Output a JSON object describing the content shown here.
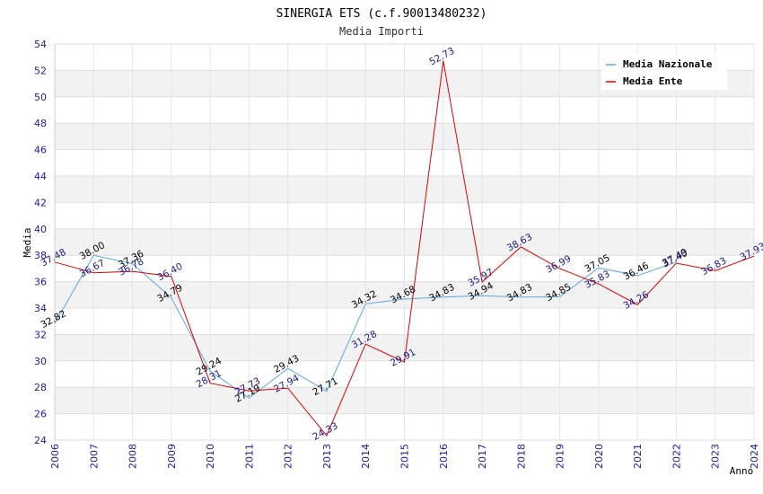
{
  "chart_data": {
    "type": "line",
    "title": "SINERGIA ETS (c.f.90013480232)",
    "subtitle": "Media Importi",
    "xlabel": "Anno",
    "ylabel": "Media",
    "ylim": [
      24,
      54
    ],
    "y_ticks": [
      24,
      26,
      28,
      30,
      32,
      34,
      36,
      38,
      40,
      42,
      44,
      46,
      48,
      50,
      52,
      54
    ],
    "categories": [
      "2006",
      "2007",
      "2008",
      "2009",
      "2010",
      "2011",
      "2012",
      "2013",
      "2014",
      "2015",
      "2016",
      "2017",
      "2018",
      "2019",
      "2020",
      "2021",
      "2022",
      "2023",
      "2024"
    ],
    "series": [
      {
        "name": "Media Nazionale",
        "color": "#5aa8e6",
        "label_color": "#000000",
        "values": [
          32.82,
          38.0,
          37.36,
          34.79,
          29.24,
          27.19,
          29.43,
          27.71,
          34.32,
          34.68,
          34.83,
          34.94,
          34.83,
          34.85,
          37.05,
          36.46,
          37.49,
          null,
          null
        ],
        "labels": [
          "32.82",
          "38.00",
          "37.36",
          "34.79",
          "29.24",
          "27.19",
          "29.43",
          "27.71",
          "34.32",
          "34.68",
          "34.83",
          "34.94",
          "34.83",
          "34.85",
          "37.05",
          "36.46",
          "37.49",
          "",
          ""
        ]
      },
      {
        "name": "Media Ente",
        "color": "#e00000",
        "label_color": "#1a1a8c",
        "values": [
          37.48,
          36.67,
          36.78,
          36.4,
          28.31,
          27.73,
          27.94,
          24.33,
          31.28,
          29.91,
          52.73,
          35.97,
          38.63,
          36.99,
          35.83,
          34.26,
          37.4,
          36.83,
          37.93
        ],
        "labels": [
          "37.48",
          "36.67",
          "36.78",
          "36.40",
          "28.31",
          "27.73",
          "27.94",
          "24.33",
          "31.28",
          "29.91",
          "52.73",
          "35.97",
          "38.63",
          "36.99",
          "35.83",
          "34.26",
          "37.40",
          "36.83",
          "37.93"
        ]
      }
    ],
    "legend": {
      "position": "top-right"
    },
    "grid": true
  }
}
